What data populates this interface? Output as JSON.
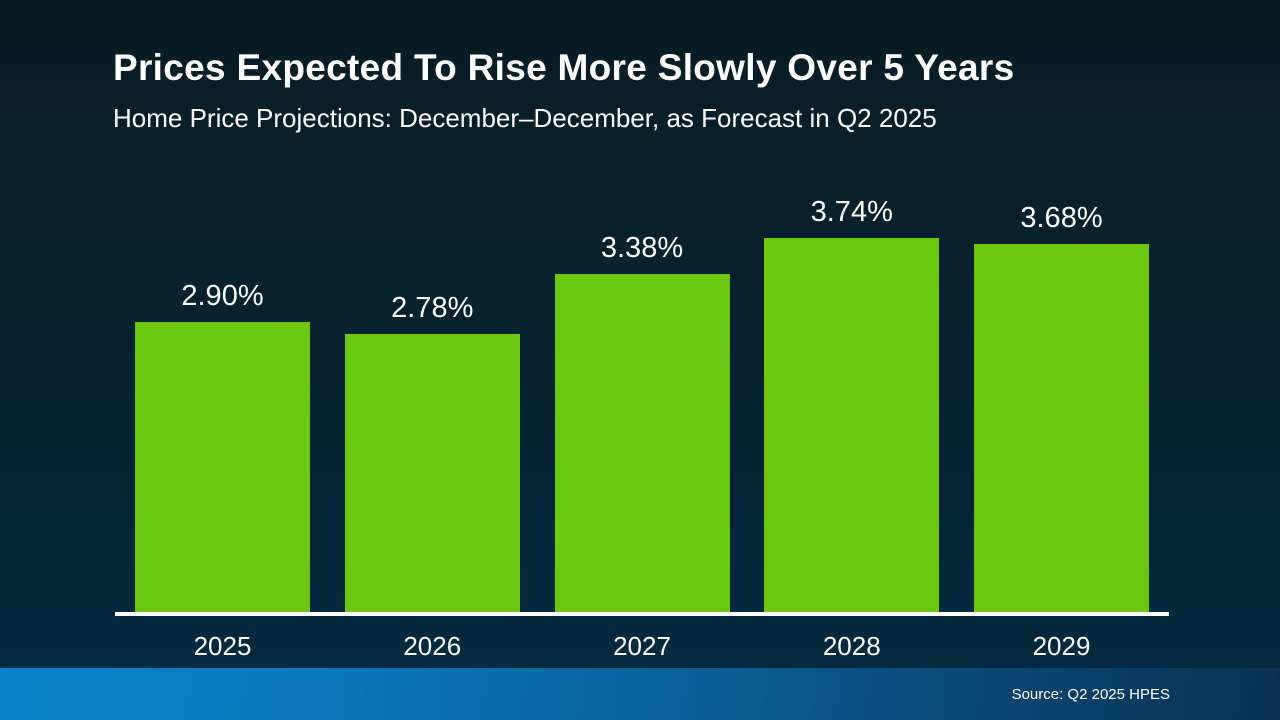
{
  "slide": {
    "title": "Prices Expected To Rise More Slowly Over 5 Years",
    "subtitle": "Home Price Projections: December–December, as Forecast in Q2 2025",
    "source": "Source: Q2 2025 HPES"
  },
  "colors": {
    "bar_green": "#6cc712",
    "background_top": "#081a22",
    "background_bottom": "#032b42",
    "footer_blue_left": "#0583cb",
    "footer_blue_right": "#083050",
    "axis_line": "#ffffff",
    "text": "#ffffff"
  },
  "chart_data": {
    "type": "bar",
    "title": "Prices Expected To Rise More Slowly Over 5 Years",
    "subtitle": "Home Price Projections: December–December, as Forecast in Q2 2025",
    "categories": [
      "2025",
      "2026",
      "2027",
      "2028",
      "2029"
    ],
    "values": [
      2.9,
      2.78,
      3.38,
      3.74,
      3.68
    ],
    "value_labels": [
      "2.90%",
      "2.78%",
      "3.38%",
      "3.74%",
      "3.68%"
    ],
    "unit": "%",
    "ylim": [
      0,
      3.74
    ],
    "grid": false,
    "legend": "none",
    "bar_color": "#6cc712",
    "annotation": "Source: Q2 2025 HPES"
  }
}
